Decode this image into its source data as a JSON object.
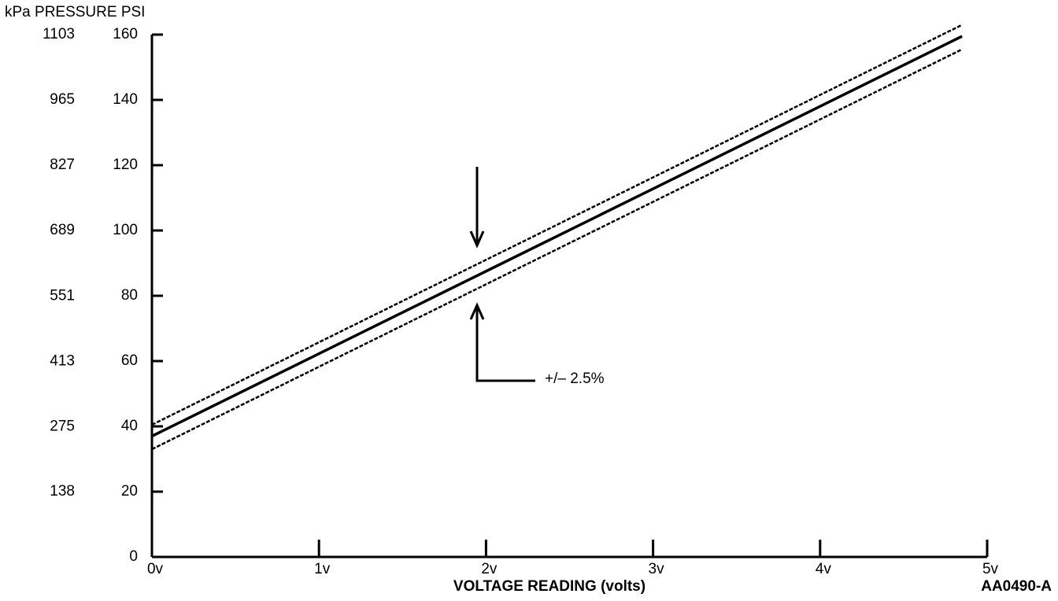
{
  "chart_data": {
    "type": "line",
    "ylabel": "kPa PRESSURE PSI",
    "xlabel": "VOLTAGE READING (volts)",
    "annotation": "+/– 2.5%",
    "figure_code": "AA0490-A",
    "xlim": [
      0,
      5
    ],
    "xticks": [
      {
        "value": 0,
        "label": "0v"
      },
      {
        "value": 1,
        "label": "1v"
      },
      {
        "value": 2,
        "label": "2v"
      },
      {
        "value": 3,
        "label": "3v"
      },
      {
        "value": 4,
        "label": "4v"
      },
      {
        "value": 5,
        "label": "5v"
      }
    ],
    "ylim": [
      0,
      160
    ],
    "yticks": [
      0,
      20,
      40,
      60,
      80,
      100,
      120,
      140,
      160
    ],
    "y2lim": [
      0,
      1103
    ],
    "y2ticks": [
      138,
      275,
      413,
      551,
      689,
      827,
      965,
      1103
    ],
    "x": [
      0,
      4.85
    ],
    "series": [
      {
        "color": "#000000",
        "style": "solid",
        "values": [
          37,
          159.5
        ]
      },
      {
        "color": "#000000",
        "style": "dashed",
        "values": [
          40.5,
          163
        ]
      },
      {
        "color": "#000000",
        "style": "dashed",
        "values": [
          33,
          155.5
        ]
      }
    ]
  }
}
